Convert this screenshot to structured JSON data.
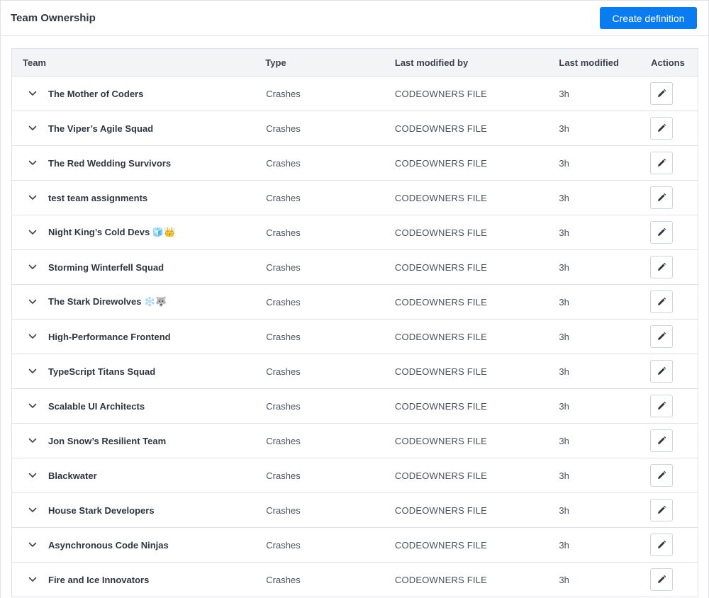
{
  "header": {
    "title": "Team Ownership",
    "create_button_label": "Create definition"
  },
  "table": {
    "columns": {
      "team": "Team",
      "type": "Type",
      "last_modified_by": "Last modified by",
      "last_modified": "Last modified",
      "actions": "Actions"
    },
    "rows": [
      {
        "team": "The Mother of Coders",
        "type": "Crashes",
        "modified_by": "CODEOWNERS FILE",
        "modified": "3h"
      },
      {
        "team": "The Viper’s Agile Squad",
        "type": "Crashes",
        "modified_by": "CODEOWNERS FILE",
        "modified": "3h"
      },
      {
        "team": "The Red Wedding Survivors",
        "type": "Crashes",
        "modified_by": "CODEOWNERS FILE",
        "modified": "3h"
      },
      {
        "team": "test team assignments",
        "type": "Crashes",
        "modified_by": "CODEOWNERS FILE",
        "modified": "3h"
      },
      {
        "team": "Night King’s Cold Devs 🧊👑",
        "type": "Crashes",
        "modified_by": "CODEOWNERS FILE",
        "modified": "3h"
      },
      {
        "team": "Storming Winterfell Squad",
        "type": "Crashes",
        "modified_by": "CODEOWNERS FILE",
        "modified": "3h"
      },
      {
        "team": "The Stark Direwolves ❄️🐺",
        "type": "Crashes",
        "modified_by": "CODEOWNERS FILE",
        "modified": "3h"
      },
      {
        "team": "High-Performance Frontend",
        "type": "Crashes",
        "modified_by": "CODEOWNERS FILE",
        "modified": "3h"
      },
      {
        "team": "TypeScript Titans Squad",
        "type": "Crashes",
        "modified_by": "CODEOWNERS FILE",
        "modified": "3h"
      },
      {
        "team": "Scalable UI Architects",
        "type": "Crashes",
        "modified_by": "CODEOWNERS FILE",
        "modified": "3h"
      },
      {
        "team": "Jon Snow’s Resilient Team",
        "type": "Crashes",
        "modified_by": "CODEOWNERS FILE",
        "modified": "3h"
      },
      {
        "team": "Blackwater",
        "type": "Crashes",
        "modified_by": "CODEOWNERS FILE",
        "modified": "3h"
      },
      {
        "team": "House Stark Developers",
        "type": "Crashes",
        "modified_by": "CODEOWNERS FILE",
        "modified": "3h"
      },
      {
        "team": "Asynchronous Code Ninjas",
        "type": "Crashes",
        "modified_by": "CODEOWNERS FILE",
        "modified": "3h"
      },
      {
        "team": "Fire and Ice Innovators",
        "type": "Crashes",
        "modified_by": "CODEOWNERS FILE",
        "modified": "3h"
      }
    ]
  },
  "icons": {
    "row_toggle": "chevron-down-icon",
    "edit": "pencil-icon"
  },
  "colors": {
    "primary": "#0a7cf0",
    "header_bg": "#f3f4f6",
    "border": "#dfe1e6"
  }
}
